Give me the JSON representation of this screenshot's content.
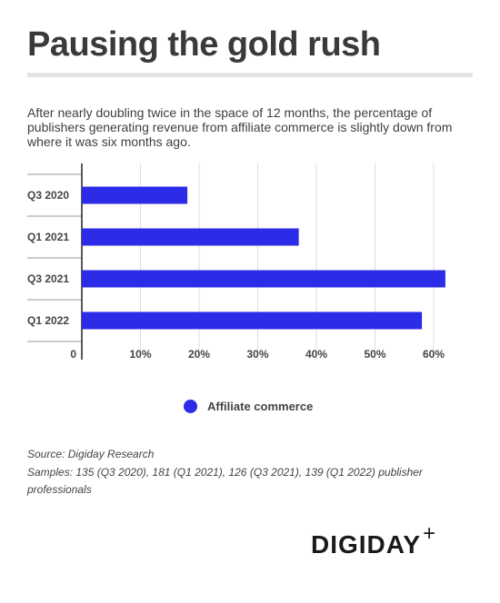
{
  "title": "Pausing the gold rush",
  "subtitle": "After nearly doubling twice in the space of 12 months, the percentage of publishers generating revenue from affiliate commerce is slightly down from where it was six months ago.",
  "chart_data": {
    "type": "bar",
    "orientation": "horizontal",
    "categories": [
      "Q3 2020",
      "Q1 2021",
      "Q3 2021",
      "Q1 2022"
    ],
    "series": [
      {
        "name": "Affiliate commerce",
        "values": [
          18,
          37,
          62,
          58
        ]
      }
    ],
    "xlim": [
      0,
      62
    ],
    "x_ticks": [
      0,
      10,
      20,
      30,
      40,
      50,
      60
    ],
    "x_tick_labels": [
      "0",
      "10%",
      "20%",
      "30%",
      "40%",
      "50%",
      "60%"
    ],
    "grid": true,
    "legend_position": "bottom",
    "bar_color": "#2b2be8"
  },
  "legend": {
    "label": "Affiliate commerce"
  },
  "source": {
    "line1": "Source: Digiday Research",
    "line2": "Samples: 135 (Q3 2020), 181 (Q1 2021), 126 (Q3 2021), 139 (Q1 2022) publisher professionals"
  },
  "logo": {
    "word": "DIGIDAY",
    "plus": "+"
  }
}
